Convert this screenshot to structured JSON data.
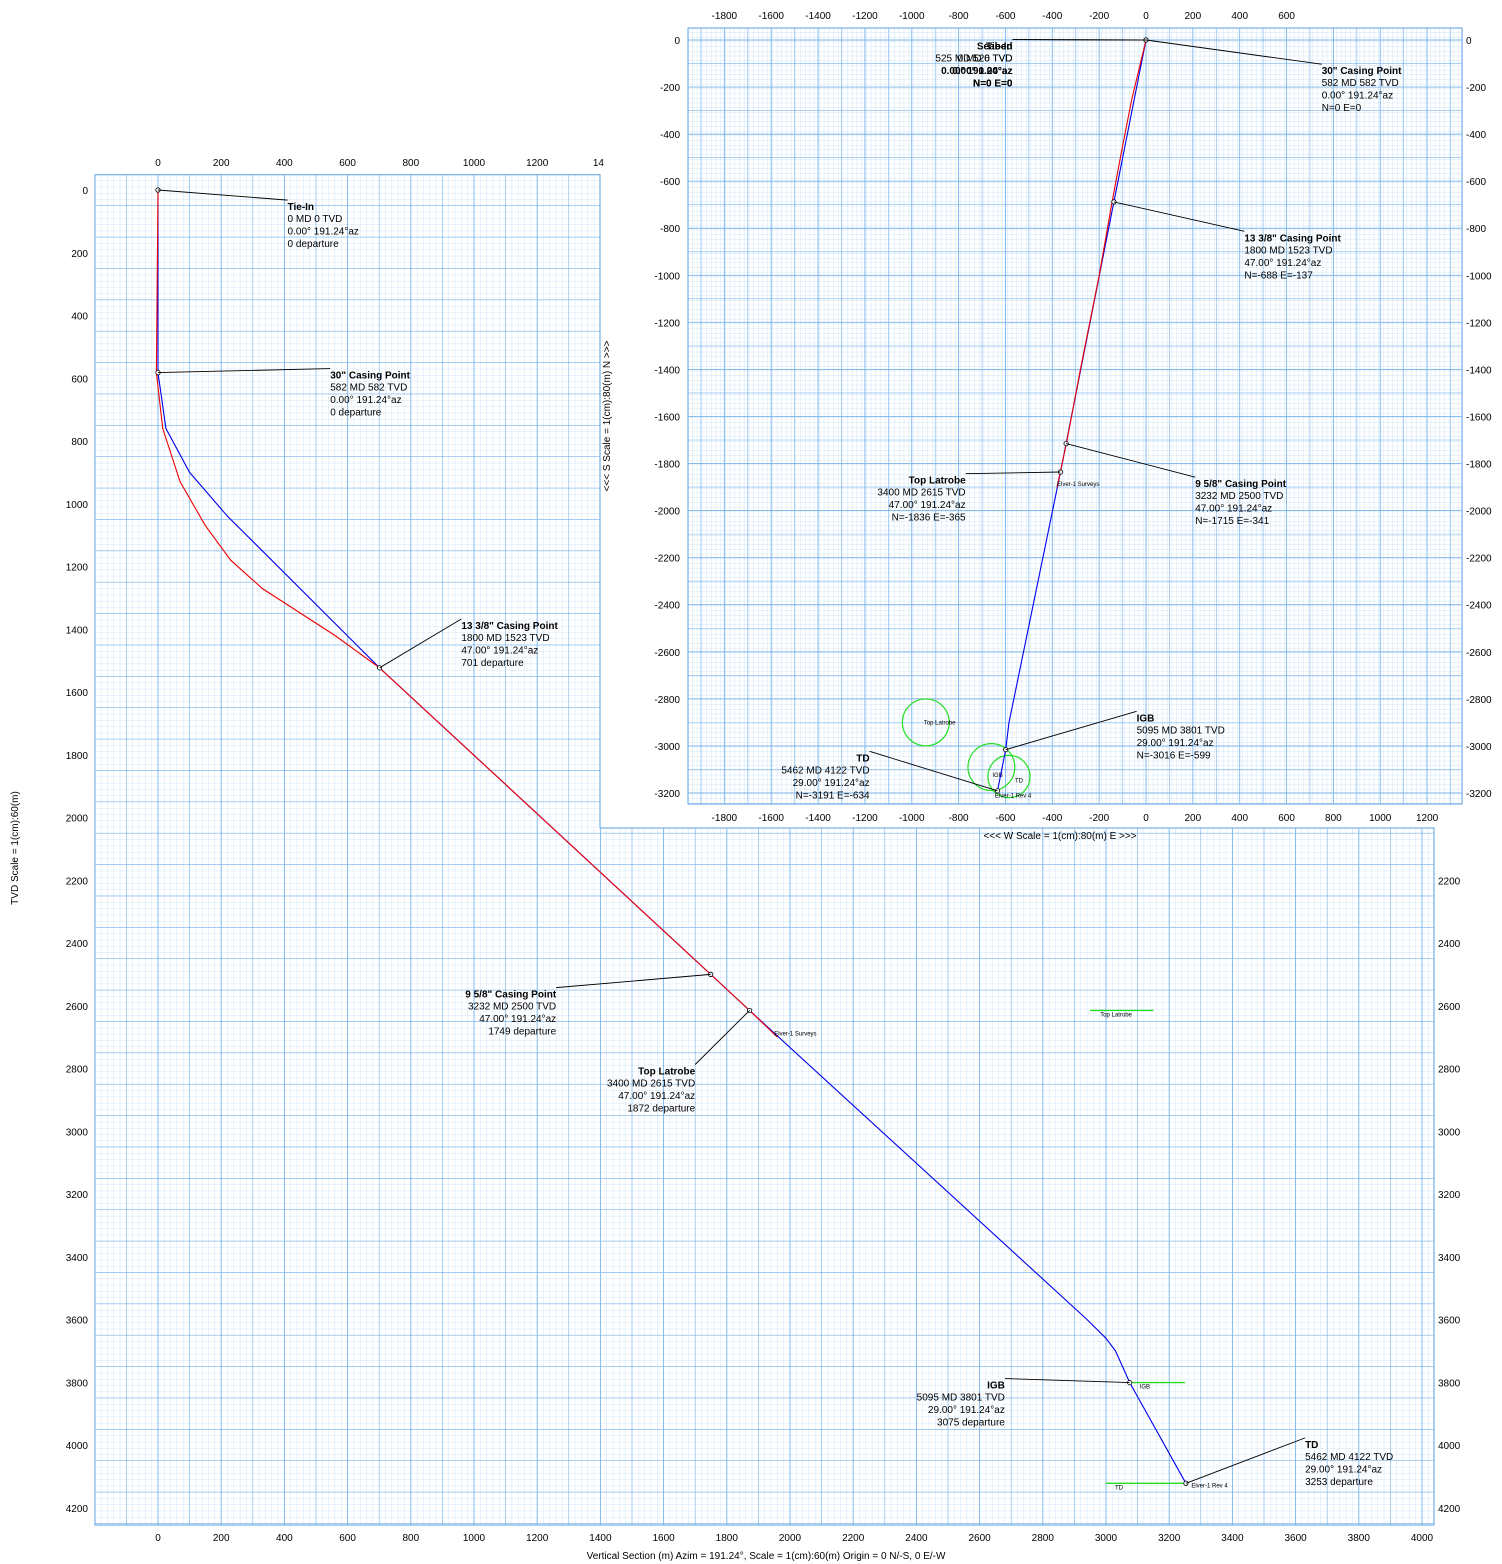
{
  "chart_data": [
    {
      "id": "vertical-section",
      "type": "line",
      "xlabel": "Vertical Section (m) Azim = 191.24°, Scale = 1(cm):60(m)  Origin = 0 N/-S, 0 E/-W",
      "ylabel": "TVD Scale = 1(cm):60(m)",
      "x_ticks": [
        "0",
        "200",
        "400",
        "600",
        "800",
        "1000",
        "1200",
        "1400",
        "1600",
        "1800",
        "2000",
        "2200",
        "2400",
        "2600",
        "2800",
        "3000",
        "3200",
        "3400",
        "3600",
        "3800",
        "4000"
      ],
      "top_x_ticks": [
        "0",
        "200",
        "400",
        "600",
        "800",
        "1000",
        "1200",
        "14"
      ],
      "y_ticks": [
        "0",
        "200",
        "400",
        "600",
        "800",
        "1000",
        "1200",
        "1400",
        "1600",
        "1800",
        "2000",
        "2200",
        "2400",
        "2600",
        "2800",
        "3000",
        "3200",
        "3400",
        "3600",
        "3800",
        "4000",
        "4200"
      ],
      "right_y_ticks": [
        "2200",
        "2400",
        "2600",
        "2800",
        "3000",
        "3200",
        "3400",
        "3600",
        "3800",
        "4000",
        "4200"
      ],
      "xlim": [
        -200,
        4100
      ],
      "ylim": [
        -70,
        4270
      ],
      "grid": true,
      "series": [
        {
          "name": "Elver-1 Rev 4",
          "color": "#0000ee",
          "points": [
            [
              0,
              0
            ],
            [
              0,
              582
            ],
            [
              25,
              760
            ],
            [
              100,
              900
            ],
            [
              220,
              1040
            ],
            [
              330,
              1150
            ],
            [
              701,
              1523
            ],
            [
              1749,
              2500
            ],
            [
              1872,
              2615
            ],
            [
              2940,
              3600
            ],
            [
              3000,
              3660
            ],
            [
              3030,
              3700
            ],
            [
              3075,
              3801
            ],
            [
              3253,
              4122
            ]
          ]
        },
        {
          "name": "Elver-1 Surveys",
          "color": "#ee0000",
          "points": [
            [
              0,
              0
            ],
            [
              -5,
              582
            ],
            [
              15,
              760
            ],
            [
              70,
              930
            ],
            [
              150,
              1070
            ],
            [
              230,
              1180
            ],
            [
              330,
              1270
            ],
            [
              560,
              1420
            ],
            [
              701,
              1523
            ],
            [
              1749,
              2500
            ],
            [
              1872,
              2615
            ],
            [
              1960,
              2700
            ]
          ]
        }
      ],
      "markers": [
        [
          0,
          0
        ],
        [
          0,
          582
        ],
        [
          701,
          1523
        ],
        [
          1749,
          2500
        ],
        [
          1872,
          2615
        ],
        [
          3075,
          3801
        ],
        [
          3253,
          4122
        ]
      ],
      "target_lines": [
        {
          "label": "Top Latrobe",
          "x": [
            2950,
            3150
          ],
          "y": 2615
        },
        {
          "label": "IGB",
          "x": [
            3075,
            3250
          ],
          "y": 3801
        },
        {
          "label": "TD",
          "x": [
            3000,
            3250
          ],
          "y": 4122
        }
      ],
      "well_labels": [
        {
          "text": "Elver-1 Surveys",
          "x": 1950,
          "y": 2695
        },
        {
          "text": "Elver-1 Rev 4",
          "x": 3270,
          "y": 4135
        }
      ],
      "annotations": [
        {
          "title": "Tie-In",
          "lines": [
            "0 MD  0 TVD",
            "0.00°  191.24°az",
            "0 departure"
          ],
          "point": [
            0,
            0
          ],
          "text_at": [
            410,
            45
          ],
          "align": "start"
        },
        {
          "title": "30\" Casing Point",
          "lines": [
            "582 MD  582 TVD",
            "0.00°  191.24°az",
            "0 departure"
          ],
          "point": [
            0,
            582
          ],
          "text_at": [
            545,
            582
          ],
          "align": "start"
        },
        {
          "title": "13 3/8\" Casing Point",
          "lines": [
            "1800 MD  1523 TVD",
            "47.00°  191.24°az",
            "701 departure"
          ],
          "point": [
            701,
            1523
          ],
          "text_at": [
            960,
            1380
          ],
          "align": "start"
        },
        {
          "title": "9 5/8\" Casing Point",
          "lines": [
            "3232 MD  2500 TVD",
            "47.00°  191.24°az",
            "1749 departure"
          ],
          "point": [
            1749,
            2500
          ],
          "text_at": [
            1260,
            2555
          ],
          "align": "end"
        },
        {
          "title": "Top Latrobe",
          "lines": [
            "3400 MD  2615 TVD",
            "47.00°  191.24°az",
            "1872 departure"
          ],
          "point": [
            1872,
            2615
          ],
          "text_at": [
            1700,
            2800
          ],
          "align": "end"
        },
        {
          "title": "IGB",
          "lines": [
            "5095 MD  3801 TVD",
            "29.00°  191.24°az",
            "3075 departure"
          ],
          "point": [
            3075,
            3801
          ],
          "text_at": [
            2680,
            3801
          ],
          "align": "end"
        },
        {
          "title": "TD",
          "lines": [
            "5462 MD  4122 TVD",
            "29.00°  191.24°az",
            "3253 departure"
          ],
          "point": [
            3253,
            4122
          ],
          "text_at": [
            3630,
            3990
          ],
          "align": "start"
        }
      ]
    },
    {
      "id": "plan-view",
      "type": "line",
      "xlabel": "<<<  W   Scale = 1(cm):80(m)   E  >>>",
      "ylabel": "<<<  S   Scale = 1(cm):80(m)   N  >>>",
      "x_ticks": [
        "-1800",
        "-1600",
        "-1400",
        "-1200",
        "-1000",
        "-800",
        "-600",
        "-400",
        "-200",
        "0",
        "200",
        "400",
        "600",
        "800",
        "1000",
        "1200"
      ],
      "top_x_ticks": [
        "-1800",
        "-1600",
        "-1400",
        "-1200",
        "-1000",
        "-800",
        "-600",
        "-400",
        "-200",
        "0",
        "200",
        "400",
        "600"
      ],
      "y_ticks": [
        "0",
        "-200",
        "-400",
        "-600",
        "-800",
        "-1000",
        "-1200",
        "-1400",
        "-1600",
        "-1800",
        "-2000",
        "-2200",
        "-2400",
        "-2600",
        "-2800",
        "-3000",
        "-3200"
      ],
      "xlim": [
        -1950,
        1350
      ],
      "ylim": [
        -3300,
        60
      ],
      "grid": true,
      "series": [
        {
          "name": "Elver-1 Rev 4",
          "color": "#0000ee",
          "points": [
            [
              0,
              0
            ],
            [
              -137,
              -688
            ],
            [
              -341,
              -1715
            ],
            [
              -365,
              -1836
            ],
            [
              -585,
              -2900
            ],
            [
              -599,
              -3016
            ],
            [
              -634,
              -3191
            ]
          ]
        },
        {
          "name": "Elver-1 Surveys",
          "color": "#ee0000",
          "points": [
            [
              0,
              0
            ],
            [
              -60,
              -250
            ],
            [
              -100,
              -450
            ],
            [
              -145,
              -690
            ],
            [
              -200,
              -1000
            ],
            [
              -280,
              -1400
            ],
            [
              -340,
              -1715
            ],
            [
              -380,
              -1900
            ]
          ]
        }
      ],
      "markers": [
        [
          0,
          0
        ],
        [
          -137,
          -688
        ],
        [
          -341,
          -1715
        ],
        [
          -365,
          -1836
        ],
        [
          -599,
          -3016
        ],
        [
          -634,
          -3191
        ]
      ],
      "target_circles": [
        {
          "label": "Top Latrobe",
          "x": -940,
          "y": -2900,
          "r": 100
        },
        {
          "label": "IGB",
          "x": -660,
          "y": -3090,
          "r": 100
        },
        {
          "label": "TD",
          "x": -585,
          "y": -3130,
          "r": 90
        }
      ],
      "well_labels": [
        {
          "text": "Elver-1 Surveys",
          "x": -380,
          "y": -1895
        },
        {
          "text": "Elver-1 Rev 4",
          "x": -645,
          "y": -3220
        }
      ],
      "annotations": [
        {
          "title": "Seabed",
          "lines": [
            "525 MD  526 TVD",
            "0.00°  0.00°az",
            "N=0 E=0"
          ],
          "point": [
            0,
            0
          ],
          "text_at": [
            -570,
            -15
          ],
          "align": "end",
          "bold_all": true
        },
        {
          "title": "Tie-In",
          "lines": [
            "0 MD  0 TVD",
            "0.00°  191.24°az",
            "N=0 E=0"
          ],
          "point": [
            0,
            0
          ],
          "text_at": [
            -570,
            -15
          ],
          "align": "end",
          "overlay": true
        },
        {
          "title": "30\" Casing Point",
          "lines": [
            "582 MD  582 TVD",
            "0.00°  191.24°az",
            "N=0 E=0"
          ],
          "point": [
            0,
            0
          ],
          "text_at": [
            750,
            -120
          ],
          "align": "start"
        },
        {
          "title": "13 3/8\" Casing Point",
          "lines": [
            "1800 MD  1523 TVD",
            "47.00°  191.24°az",
            "N=-688 E=-137"
          ],
          "point": [
            -137,
            -688
          ],
          "text_at": [
            420,
            -830
          ],
          "align": "start"
        },
        {
          "title": "9 5/8\" Casing Point",
          "lines": [
            "3232 MD  2500 TVD",
            "47.00°  191.24°az",
            "N=-1715 E=-341"
          ],
          "point": [
            -341,
            -1715
          ],
          "text_at": [
            210,
            -1875
          ],
          "align": "start"
        },
        {
          "title": "Top Latrobe",
          "lines": [
            "3400 MD  2615 TVD",
            "47.00°  191.24°az",
            "N=-1836 E=-365"
          ],
          "point": [
            -365,
            -1836
          ],
          "text_at": [
            -770,
            -1860
          ],
          "align": "end"
        },
        {
          "title": "IGB",
          "lines": [
            "5095 MD  3801 TVD",
            "29.00°  191.24°az",
            "N=-3016 E=-599"
          ],
          "point": [
            -599,
            -3016
          ],
          "text_at": [
            -40,
            -2870
          ],
          "align": "start"
        },
        {
          "title": "TD",
          "lines": [
            "5462 MD  4122 TVD",
            "29.00°  191.24°az",
            "N=-3191 E=-634"
          ],
          "point": [
            -634,
            -3191
          ],
          "text_at": [
            -1180,
            -3040
          ],
          "align": "end"
        }
      ]
    }
  ]
}
